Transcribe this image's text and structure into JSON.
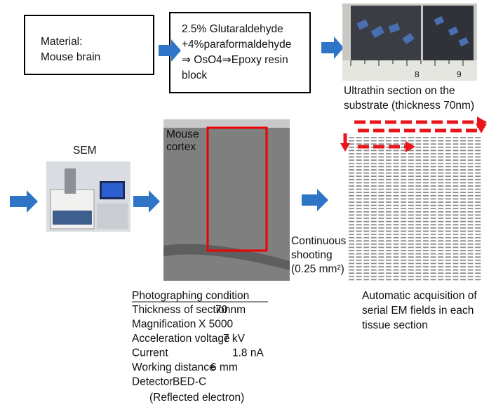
{
  "material_box": {
    "lines": [
      "Material:",
      "Mouse brain"
    ]
  },
  "fixation_box": {
    "lines": [
      "2.5% Glutaraldehyde",
      "+4%paraformaldehyde",
      "⇒ OsO4⇒Epoxy resin",
      "block"
    ]
  },
  "substrate_photo": {
    "ruler_labels": [
      "8",
      "9"
    ],
    "caption": [
      "Ultrathin section on the",
      "substrate (thickness 70nm)"
    ]
  },
  "sem": {
    "label": "SEM"
  },
  "cortex_image": {
    "label": [
      "Mouse",
      "cortex"
    ]
  },
  "shooting": {
    "lines": [
      "Continuous",
      "shooting",
      "(0.25 mm²)"
    ]
  },
  "acquisition": {
    "lines": [
      "Automatic acquisition of",
      "serial EM fields in each",
      "tissue section"
    ]
  },
  "conditions": {
    "title": "Photographing condition",
    "rows": [
      {
        "name": "Thickness of section",
        "value": "70 nm"
      },
      {
        "name": "Magnification",
        "value": "X 5000"
      },
      {
        "name": "Acceleration voltage",
        "value": "7 kV"
      },
      {
        "name": "Current",
        "value": "1.8 nA"
      },
      {
        "name": "Working distance",
        "value": "6 mm"
      },
      {
        "name": "Detector",
        "value": "BED-C"
      }
    ],
    "note": "(Reflected electron)"
  }
}
